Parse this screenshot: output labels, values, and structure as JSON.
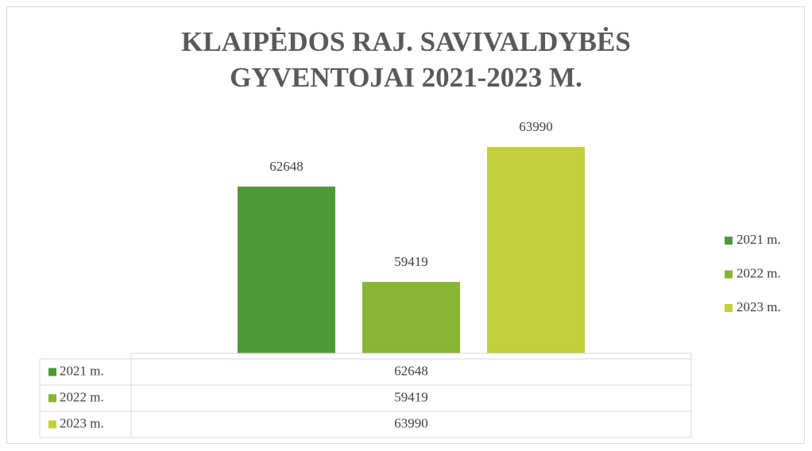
{
  "chart_data": {
    "type": "bar",
    "title": "KLAIPĖDOS RAJ. SAVIVALDYBĖS GYVENTOJAI 2021-2023 M.",
    "categories": [
      null
    ],
    "series": [
      {
        "name": "2021 m.",
        "color": "#4f9a37",
        "values": [
          62648
        ]
      },
      {
        "name": "2022 m.",
        "color": "#8ab534",
        "values": [
          59419
        ]
      },
      {
        "name": "2023 m.",
        "color": "#c4cf3a",
        "values": [
          63990
        ]
      }
    ],
    "ylim": [
      57000,
      65000
    ],
    "legend": "right",
    "data_table": true
  }
}
